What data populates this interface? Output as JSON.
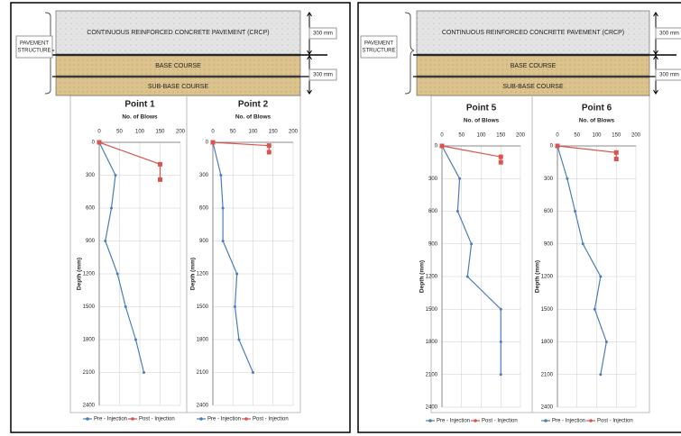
{
  "diagrams": [
    {
      "structure_label": [
        "PAVEMENT",
        "STRUCTURE"
      ],
      "layers": [
        "CONTINUOUS REINFORCED  CONCRETE PAVEMENT (CRCP)",
        "BASE COURSE",
        "SUB-BASE COURSE"
      ],
      "dimensions": [
        "300 mm",
        "300 mm"
      ]
    },
    {
      "structure_label": [
        "PAVEMENT",
        "STRUCTURE"
      ],
      "layers": [
        "CONTINUOUS REINFORCED  CONCRETE PAVEMENT (CRCP)",
        "BASE COURSE",
        "SUB-BASE COURSE"
      ],
      "dimensions": [
        "300 mm",
        "300 mm"
      ]
    }
  ],
  "chart_data": [
    {
      "type": "line",
      "title": "Point 1",
      "x_label": "No. of Blows",
      "y_label": "Depth (mm)",
      "xlim": [
        0,
        200
      ],
      "xticks": [
        0,
        50,
        100,
        150,
        200
      ],
      "ylim": [
        0,
        2400
      ],
      "y_inverted": true,
      "yticks": [
        0,
        300,
        600,
        900,
        1200,
        1500,
        1800,
        2100,
        2400
      ],
      "grid": true,
      "series": [
        {
          "name": "Pre - Injection",
          "color": "#4a7ebb",
          "x": [
            0,
            40,
            30,
            15,
            45,
            65,
            90,
            110
          ],
          "y": [
            0,
            300,
            600,
            900,
            1200,
            1500,
            1800,
            2100
          ]
        },
        {
          "name": "Post - Injection",
          "color": "#d9534f",
          "x": [
            0,
            150,
            150
          ],
          "y": [
            0,
            200,
            340
          ]
        }
      ]
    },
    {
      "type": "line",
      "title": "Point 2",
      "x_label": "No. of Blows",
      "y_label": "Depth (mm)",
      "xlim": [
        0,
        200
      ],
      "xticks": [
        0,
        50,
        100,
        150,
        200
      ],
      "ylim": [
        0,
        2400
      ],
      "y_inverted": true,
      "yticks": [
        0,
        300,
        600,
        900,
        1200,
        1500,
        1800,
        2100,
        2400
      ],
      "grid": true,
      "series": [
        {
          "name": "Pre - Injection",
          "color": "#4a7ebb",
          "x": [
            0,
            20,
            25,
            25,
            60,
            55,
            65,
            100
          ],
          "y": [
            0,
            300,
            600,
            900,
            1200,
            1500,
            1800,
            2100
          ]
        },
        {
          "name": "Post - Injection",
          "color": "#d9534f",
          "x": [
            0,
            140,
            140
          ],
          "y": [
            0,
            30,
            90
          ]
        }
      ]
    },
    {
      "type": "line",
      "title": "Point 5",
      "x_label": "No. of Blows",
      "y_label": "Depth (mm)",
      "xlim": [
        0,
        200
      ],
      "xticks": [
        0,
        50,
        100,
        150,
        200
      ],
      "ylim": [
        0,
        2400
      ],
      "y_inverted": true,
      "yticks": [
        0,
        300,
        600,
        900,
        1200,
        1500,
        1800,
        2100,
        2400
      ],
      "grid": true,
      "series": [
        {
          "name": "Pre - Injection",
          "color": "#4a7ebb",
          "x": [
            0,
            45,
            40,
            75,
            65,
            150,
            150,
            150
          ],
          "y": [
            0,
            300,
            600,
            900,
            1200,
            1500,
            1800,
            2100
          ]
        },
        {
          "name": "Post - Injection",
          "color": "#d9534f",
          "x": [
            0,
            150,
            150
          ],
          "y": [
            0,
            100,
            150
          ]
        }
      ]
    },
    {
      "type": "line",
      "title": "Point 6",
      "x_label": "No. of Blows",
      "y_label": "Depth (mm)",
      "xlim": [
        0,
        200
      ],
      "xticks": [
        0,
        50,
        100,
        150,
        200
      ],
      "ylim": [
        0,
        2400
      ],
      "y_inverted": true,
      "yticks": [
        0,
        300,
        600,
        900,
        1200,
        1500,
        1800,
        2100,
        2400
      ],
      "grid": true,
      "series": [
        {
          "name": "Pre - Injection",
          "color": "#4a7ebb",
          "x": [
            0,
            25,
            45,
            65,
            110,
            95,
            125,
            110
          ],
          "y": [
            0,
            300,
            600,
            900,
            1200,
            1500,
            1800,
            2100
          ]
        },
        {
          "name": "Post - Injection",
          "color": "#d9534f",
          "x": [
            0,
            150,
            150
          ],
          "y": [
            0,
            60,
            120
          ]
        }
      ]
    }
  ]
}
